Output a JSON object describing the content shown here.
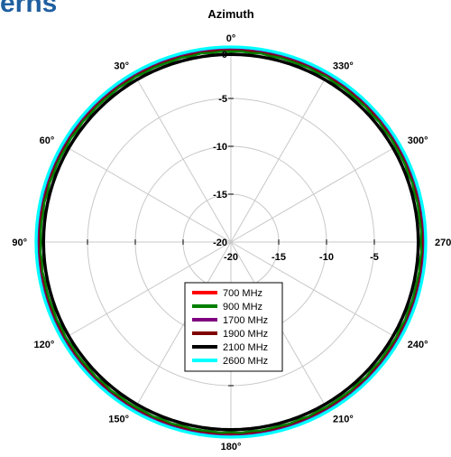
{
  "header": {
    "title_fragment": "erns"
  },
  "colors": {
    "grid": "#c8c8c8",
    "series": [
      "#ff0000",
      "#008000",
      "#7f007f",
      "#7f0000",
      "#000000",
      "#00ffff"
    ]
  },
  "chart_data": {
    "type": "polar-line",
    "title": "Azimuth",
    "angle_ticks": [
      "0°",
      "330°",
      "300°",
      "270°",
      "240°",
      "210°",
      "180°",
      "150°",
      "120°",
      "90°",
      "60°",
      "30°"
    ],
    "angle_tick_values_deg": [
      0,
      330,
      300,
      270,
      240,
      210,
      180,
      150,
      120,
      90,
      60,
      30
    ],
    "angle_direction": "clockwise-decreasing from top (0° top, 270° right, 90° left)",
    "radial_range": [
      -20,
      0
    ],
    "radial_ticks_top": [
      "0",
      "-5",
      "-10",
      "-15",
      "-20"
    ],
    "radial_ticks_right": [
      "-20",
      "-15",
      "-10",
      "-5"
    ],
    "radial_tick_values": [
      0,
      -5,
      -10,
      -15,
      -20
    ],
    "grid": true,
    "legend_position": "lower-center",
    "series": [
      {
        "name": "700 MHz",
        "color": "#ff0000",
        "level_db": 0.0
      },
      {
        "name": "900 MHz",
        "color": "#008000",
        "level_db": -0.1
      },
      {
        "name": "1700 MHz",
        "color": "#7f007f",
        "level_db": 0.1
      },
      {
        "name": "1900 MHz",
        "color": "#7f0000",
        "level_db": 0.0
      },
      {
        "name": "2100 MHz",
        "color": "#000000",
        "level_db": -0.4
      },
      {
        "name": "2600 MHz",
        "color": "#00ffff",
        "level_db": 0.3
      }
    ]
  }
}
